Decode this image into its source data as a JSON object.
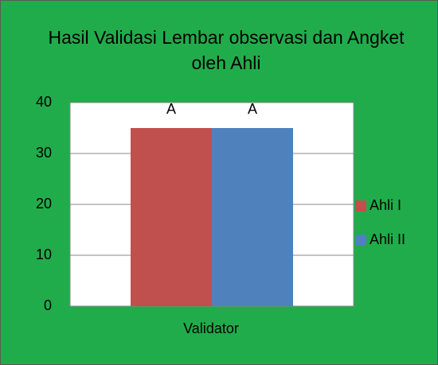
{
  "chart_data": {
    "type": "bar",
    "title": "Hasil Validasi Lembar observasi dan Angket oleh Ahli",
    "categories": [
      "Validator"
    ],
    "series": [
      {
        "name": "Ahli I",
        "color": "#c0504d",
        "values": [
          35
        ],
        "value_labels": [
          "A"
        ]
      },
      {
        "name": "Ahli II",
        "color": "#4f81bd",
        "values": [
          35
        ],
        "value_labels": [
          "A"
        ]
      }
    ],
    "ylim": [
      0,
      40
    ],
    "yticks": [
      0,
      10,
      20,
      30,
      40
    ],
    "grid": true,
    "legend": "right"
  }
}
